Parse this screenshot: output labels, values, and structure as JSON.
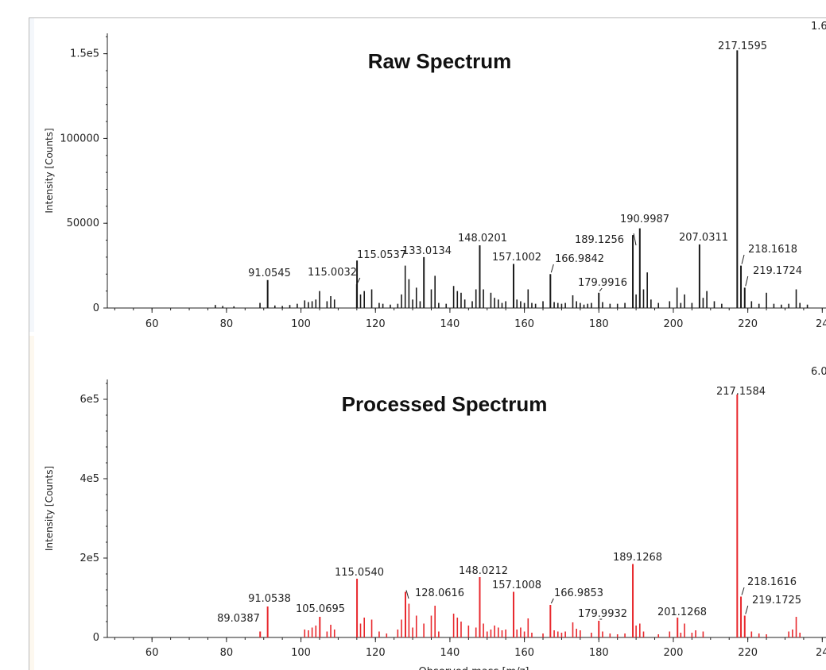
{
  "chart_data": [
    {
      "type": "bar",
      "title": "Raw Spectrum",
      "ylabel": "Intensity [Counts]",
      "xlim": [
        48,
        241
      ],
      "ylim": [
        0,
        162000
      ],
      "xticks": [
        "60",
        "80",
        "100",
        "120",
        "140",
        "160",
        "180",
        "200",
        "220",
        "24"
      ],
      "yticks": [
        "0",
        "50000",
        "100000",
        "1.5e5"
      ],
      "corner_label": "1.6",
      "color": "#1a1a1a",
      "labeled_peaks": [
        {
          "mz": 91.0545,
          "intensity": 16500,
          "label": "91.0545"
        },
        {
          "mz": 115.0032,
          "intensity": 14000,
          "label": "115.0032"
        },
        {
          "mz": 115.0537,
          "intensity": 28000,
          "label": "115.0537"
        },
        {
          "mz": 133.0134,
          "intensity": 30000,
          "label": "133.0134"
        },
        {
          "mz": 148.0201,
          "intensity": 37000,
          "label": "148.0201"
        },
        {
          "mz": 157.1002,
          "intensity": 26000,
          "label": "157.1002"
        },
        {
          "mz": 166.9842,
          "intensity": 20000,
          "label": "166.9842"
        },
        {
          "mz": 179.9916,
          "intensity": 9000,
          "label": "179.9916"
        },
        {
          "mz": 189.1256,
          "intensity": 43000,
          "label": "189.1256"
        },
        {
          "mz": 190.9987,
          "intensity": 47000,
          "label": "190.9987"
        },
        {
          "mz": 207.0311,
          "intensity": 37500,
          "label": "207.0311"
        },
        {
          "mz": 217.1595,
          "intensity": 152000,
          "label": "217.1595"
        },
        {
          "mz": 218.1618,
          "intensity": 25000,
          "label": "218.1618"
        },
        {
          "mz": 219.1724,
          "intensity": 12000,
          "label": "219.1724"
        }
      ],
      "minor_peaks": [
        {
          "mz": 77,
          "intensity": 1800
        },
        {
          "mz": 79,
          "intensity": 1200
        },
        {
          "mz": 82,
          "intensity": 1000
        },
        {
          "mz": 89,
          "intensity": 3000
        },
        {
          "mz": 93,
          "intensity": 1500
        },
        {
          "mz": 95,
          "intensity": 1200
        },
        {
          "mz": 97,
          "intensity": 1800
        },
        {
          "mz": 99,
          "intensity": 2500
        },
        {
          "mz": 101,
          "intensity": 4500
        },
        {
          "mz": 102,
          "intensity": 3500
        },
        {
          "mz": 103,
          "intensity": 4000
        },
        {
          "mz": 104,
          "intensity": 5000
        },
        {
          "mz": 105,
          "intensity": 10000
        },
        {
          "mz": 107,
          "intensity": 4000
        },
        {
          "mz": 108,
          "intensity": 7000
        },
        {
          "mz": 109,
          "intensity": 5000
        },
        {
          "mz": 116,
          "intensity": 8000
        },
        {
          "mz": 117,
          "intensity": 10000
        },
        {
          "mz": 119,
          "intensity": 11000
        },
        {
          "mz": 121,
          "intensity": 3000
        },
        {
          "mz": 122,
          "intensity": 2500
        },
        {
          "mz": 124,
          "intensity": 2000
        },
        {
          "mz": 126,
          "intensity": 2500
        },
        {
          "mz": 127,
          "intensity": 8000
        },
        {
          "mz": 128,
          "intensity": 25000
        },
        {
          "mz": 129,
          "intensity": 17000
        },
        {
          "mz": 130,
          "intensity": 5000
        },
        {
          "mz": 131,
          "intensity": 12000
        },
        {
          "mz": 132,
          "intensity": 4000
        },
        {
          "mz": 135,
          "intensity": 11000
        },
        {
          "mz": 136,
          "intensity": 19000
        },
        {
          "mz": 137,
          "intensity": 3000
        },
        {
          "mz": 139,
          "intensity": 2500
        },
        {
          "mz": 141,
          "intensity": 13000
        },
        {
          "mz": 142,
          "intensity": 10000
        },
        {
          "mz": 143,
          "intensity": 9000
        },
        {
          "mz": 144,
          "intensity": 5000
        },
        {
          "mz": 146,
          "intensity": 4000
        },
        {
          "mz": 147,
          "intensity": 11000
        },
        {
          "mz": 149,
          "intensity": 11000
        },
        {
          "mz": 151,
          "intensity": 9000
        },
        {
          "mz": 152,
          "intensity": 6000
        },
        {
          "mz": 153,
          "intensity": 5000
        },
        {
          "mz": 154,
          "intensity": 3000
        },
        {
          "mz": 155,
          "intensity": 4000
        },
        {
          "mz": 158,
          "intensity": 5000
        },
        {
          "mz": 159,
          "intensity": 4000
        },
        {
          "mz": 160,
          "intensity": 3000
        },
        {
          "mz": 161,
          "intensity": 11000
        },
        {
          "mz": 162,
          "intensity": 3000
        },
        {
          "mz": 163,
          "intensity": 2500
        },
        {
          "mz": 165,
          "intensity": 4000
        },
        {
          "mz": 168,
          "intensity": 3500
        },
        {
          "mz": 169,
          "intensity": 3000
        },
        {
          "mz": 170,
          "intensity": 2500
        },
        {
          "mz": 171,
          "intensity": 3000
        },
        {
          "mz": 173,
          "intensity": 7500
        },
        {
          "mz": 174,
          "intensity": 4000
        },
        {
          "mz": 175,
          "intensity": 3000
        },
        {
          "mz": 176,
          "intensity": 2000
        },
        {
          "mz": 177,
          "intensity": 2500
        },
        {
          "mz": 178,
          "intensity": 3000
        },
        {
          "mz": 181,
          "intensity": 3500
        },
        {
          "mz": 183,
          "intensity": 2500
        },
        {
          "mz": 185,
          "intensity": 2500
        },
        {
          "mz": 187,
          "intensity": 3000
        },
        {
          "mz": 190,
          "intensity": 8000
        },
        {
          "mz": 192,
          "intensity": 11000
        },
        {
          "mz": 193,
          "intensity": 21000
        },
        {
          "mz": 194,
          "intensity": 5000
        },
        {
          "mz": 196,
          "intensity": 3000
        },
        {
          "mz": 199,
          "intensity": 4000
        },
        {
          "mz": 201,
          "intensity": 12000
        },
        {
          "mz": 202,
          "intensity": 3000
        },
        {
          "mz": 203,
          "intensity": 8000
        },
        {
          "mz": 205,
          "intensity": 3000
        },
        {
          "mz": 208,
          "intensity": 6000
        },
        {
          "mz": 209,
          "intensity": 10000
        },
        {
          "mz": 211,
          "intensity": 4000
        },
        {
          "mz": 213,
          "intensity": 2500
        },
        {
          "mz": 221,
          "intensity": 4000
        },
        {
          "mz": 223,
          "intensity": 2500
        },
        {
          "mz": 225,
          "intensity": 9000
        },
        {
          "mz": 227,
          "intensity": 2500
        },
        {
          "mz": 229,
          "intensity": 2000
        },
        {
          "mz": 231,
          "intensity": 2500
        },
        {
          "mz": 233,
          "intensity": 11000
        },
        {
          "mz": 234,
          "intensity": 3000
        },
        {
          "mz": 236,
          "intensity": 2000
        }
      ]
    },
    {
      "type": "bar",
      "title": "Processed Spectrum",
      "ylabel": "Intensity [Counts]",
      "xlabel": "Observed mass [m/z]",
      "xlim": [
        48,
        241
      ],
      "ylim": [
        0,
        650000
      ],
      "xticks": [
        "60",
        "80",
        "100",
        "120",
        "140",
        "160",
        "180",
        "200",
        "220",
        "24"
      ],
      "yticks": [
        "0",
        "2e5",
        "4e5",
        "6e5"
      ],
      "corner_label": "6.0",
      "color": "#e8282d",
      "labeled_peaks": [
        {
          "mz": 89.0387,
          "intensity": 15000,
          "label": "89.0387"
        },
        {
          "mz": 91.0538,
          "intensity": 78000,
          "label": "91.0538"
        },
        {
          "mz": 105.0695,
          "intensity": 52000,
          "label": "105.0695"
        },
        {
          "mz": 115.054,
          "intensity": 148000,
          "label": "115.0540"
        },
        {
          "mz": 128.0616,
          "intensity": 115000,
          "label": "128.0616"
        },
        {
          "mz": 148.0212,
          "intensity": 152000,
          "label": "148.0212"
        },
        {
          "mz": 157.1008,
          "intensity": 115000,
          "label": "157.1008"
        },
        {
          "mz": 166.9853,
          "intensity": 82000,
          "label": "166.9853"
        },
        {
          "mz": 179.9932,
          "intensity": 42000,
          "label": "179.9932"
        },
        {
          "mz": 189.1268,
          "intensity": 185000,
          "label": "189.1268"
        },
        {
          "mz": 201.1268,
          "intensity": 50000,
          "label": "201.1268"
        },
        {
          "mz": 217.1584,
          "intensity": 612000,
          "label": "217.1584"
        },
        {
          "mz": 218.1616,
          "intensity": 103000,
          "label": "218.1616"
        },
        {
          "mz": 219.1725,
          "intensity": 55000,
          "label": "219.1725"
        }
      ],
      "minor_peaks": [
        {
          "mz": 101,
          "intensity": 20000
        },
        {
          "mz": 102,
          "intensity": 18000
        },
        {
          "mz": 103,
          "intensity": 25000
        },
        {
          "mz": 104,
          "intensity": 30000
        },
        {
          "mz": 107,
          "intensity": 15000
        },
        {
          "mz": 108,
          "intensity": 32000
        },
        {
          "mz": 109,
          "intensity": 20000
        },
        {
          "mz": 116,
          "intensity": 35000
        },
        {
          "mz": 117,
          "intensity": 50000
        },
        {
          "mz": 119,
          "intensity": 45000
        },
        {
          "mz": 121,
          "intensity": 15000
        },
        {
          "mz": 123,
          "intensity": 10000
        },
        {
          "mz": 126,
          "intensity": 20000
        },
        {
          "mz": 127,
          "intensity": 45000
        },
        {
          "mz": 129,
          "intensity": 85000
        },
        {
          "mz": 130,
          "intensity": 25000
        },
        {
          "mz": 131,
          "intensity": 55000
        },
        {
          "mz": 133,
          "intensity": 35000
        },
        {
          "mz": 135,
          "intensity": 55000
        },
        {
          "mz": 136,
          "intensity": 80000
        },
        {
          "mz": 137,
          "intensity": 15000
        },
        {
          "mz": 141,
          "intensity": 60000
        },
        {
          "mz": 142,
          "intensity": 50000
        },
        {
          "mz": 143,
          "intensity": 40000
        },
        {
          "mz": 145,
          "intensity": 30000
        },
        {
          "mz": 147,
          "intensity": 25000
        },
        {
          "mz": 149,
          "intensity": 35000
        },
        {
          "mz": 150,
          "intensity": 15000
        },
        {
          "mz": 151,
          "intensity": 20000
        },
        {
          "mz": 152,
          "intensity": 30000
        },
        {
          "mz": 153,
          "intensity": 25000
        },
        {
          "mz": 154,
          "intensity": 18000
        },
        {
          "mz": 155,
          "intensity": 20000
        },
        {
          "mz": 158,
          "intensity": 20000
        },
        {
          "mz": 159,
          "intensity": 25000
        },
        {
          "mz": 160,
          "intensity": 15000
        },
        {
          "mz": 161,
          "intensity": 48000
        },
        {
          "mz": 162,
          "intensity": 12000
        },
        {
          "mz": 165,
          "intensity": 10000
        },
        {
          "mz": 168,
          "intensity": 18000
        },
        {
          "mz": 169,
          "intensity": 15000
        },
        {
          "mz": 170,
          "intensity": 12000
        },
        {
          "mz": 171,
          "intensity": 15000
        },
        {
          "mz": 173,
          "intensity": 38000
        },
        {
          "mz": 174,
          "intensity": 22000
        },
        {
          "mz": 175,
          "intensity": 18000
        },
        {
          "mz": 178,
          "intensity": 12000
        },
        {
          "mz": 181,
          "intensity": 15000
        },
        {
          "mz": 183,
          "intensity": 10000
        },
        {
          "mz": 185,
          "intensity": 8000
        },
        {
          "mz": 187,
          "intensity": 10000
        },
        {
          "mz": 190,
          "intensity": 30000
        },
        {
          "mz": 191,
          "intensity": 35000
        },
        {
          "mz": 192,
          "intensity": 15000
        },
        {
          "mz": 196,
          "intensity": 8000
        },
        {
          "mz": 199,
          "intensity": 15000
        },
        {
          "mz": 202,
          "intensity": 12000
        },
        {
          "mz": 203,
          "intensity": 35000
        },
        {
          "mz": 205,
          "intensity": 12000
        },
        {
          "mz": 206,
          "intensity": 18000
        },
        {
          "mz": 208,
          "intensity": 15000
        },
        {
          "mz": 221,
          "intensity": 15000
        },
        {
          "mz": 223,
          "intensity": 10000
        },
        {
          "mz": 225,
          "intensity": 8000
        },
        {
          "mz": 231,
          "intensity": 15000
        },
        {
          "mz": 232,
          "intensity": 20000
        },
        {
          "mz": 233,
          "intensity": 52000
        },
        {
          "mz": 234,
          "intensity": 12000
        }
      ]
    }
  ]
}
